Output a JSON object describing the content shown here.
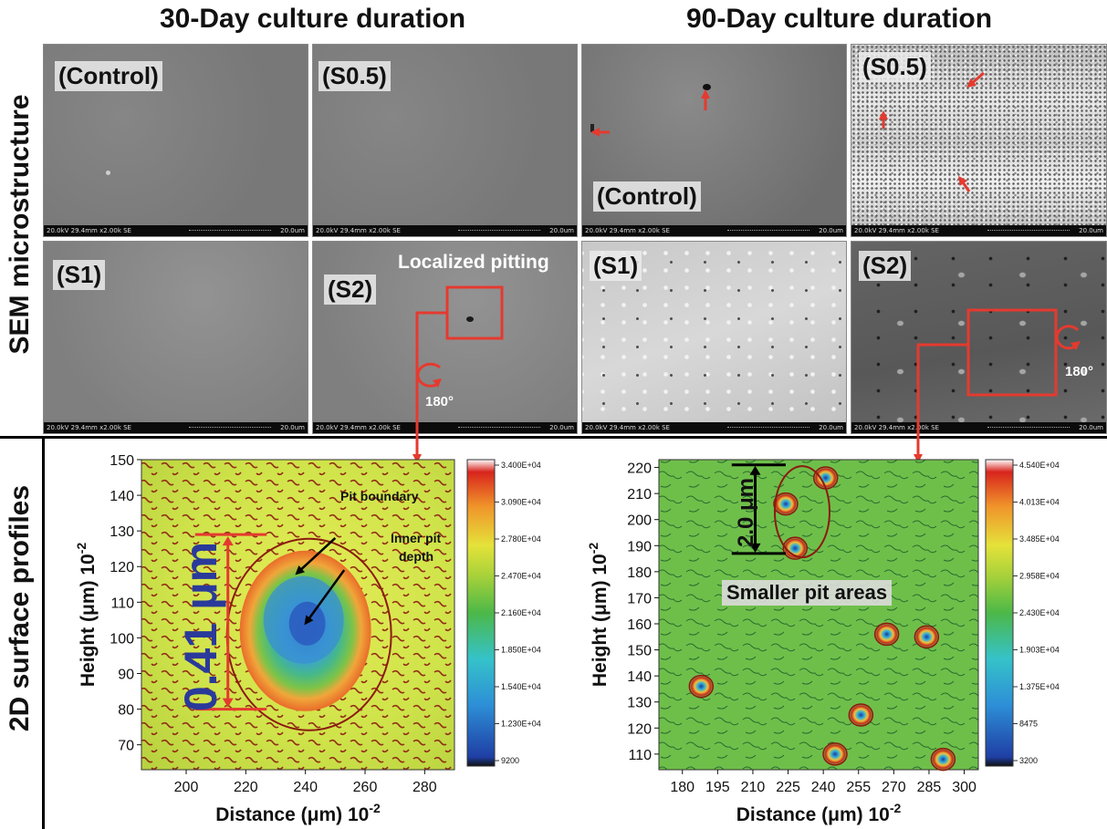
{
  "titles": {
    "left": "30-Day culture duration",
    "right": "90-Day culture duration"
  },
  "row_labels": {
    "top": "SEM microstructure",
    "bottom": "2D surface profiles"
  },
  "sem_bar": {
    "left": "20.0kV 29.4mm x2.00k SE",
    "right": "20.0um"
  },
  "sem_panels": {
    "d30_control": "(Control)",
    "d30_s05": "(S0.5)",
    "d30_s1": "(S1)",
    "d30_s2": "(S2)",
    "d90_control": "(Control)",
    "d90_s05": "(S0.5)",
    "d90_s1": "(S1)",
    "d90_s2": "(S2)"
  },
  "annotations": {
    "localized_pitting": "Localized pitting",
    "rotate_left": "180°",
    "rotate_right": "180°",
    "pit_boundary": "Pit boundary",
    "inner_pit_line1": "Inner pit",
    "inner_pit_line2": "depth",
    "depth_left": "0.41 μm",
    "depth_right": "2.0 μm",
    "smaller_pits": "Smaller pit areas"
  },
  "colors": {
    "arrow_red": "#e53a2f",
    "green_surface": "#6ebf4a",
    "yellow_surface": "#d7e64c"
  },
  "chart_data": [
    {
      "type": "heatmap",
      "xlabel": "Distance (μm) 10",
      "xlabel_sup": "-2",
      "ylabel": "Height (μm)  10",
      "ylabel_sup": "-2",
      "xlim": [
        185,
        290
      ],
      "ylim": [
        63,
        150
      ],
      "x_ticks": [
        200,
        220,
        240,
        260,
        280
      ],
      "y_ticks": [
        70,
        80,
        90,
        100,
        110,
        120,
        130,
        140,
        150
      ],
      "colorbar": [
        "3.400E+04",
        "3.090E+04",
        "2.780E+04",
        "2.470E+04",
        "2.160E+04",
        "1.850E+04",
        "1.540E+04",
        "1.230E+04",
        "9200"
      ],
      "pit_center": [
        240,
        104
      ]
    },
    {
      "type": "heatmap",
      "xlabel": "Distance (μm) 10",
      "xlabel_sup": "-2",
      "ylabel": "Height (μm)  10",
      "ylabel_sup": "-2",
      "xlim": [
        170,
        306
      ],
      "ylim": [
        104,
        223
      ],
      "x_ticks": [
        180,
        195,
        210,
        225,
        240,
        255,
        270,
        285,
        300
      ],
      "y_ticks": [
        110,
        120,
        130,
        140,
        150,
        160,
        170,
        180,
        190,
        200,
        210,
        220
      ],
      "colorbar": [
        "4.540E+04",
        "4.013E+04",
        "3.485E+04",
        "2.958E+04",
        "2.430E+04",
        "1.903E+04",
        "1.375E+04",
        "8475",
        "3200"
      ],
      "pits": [
        [
          224,
          206
        ],
        [
          228,
          189
        ],
        [
          241,
          216
        ],
        [
          188,
          136
        ],
        [
          267,
          156
        ],
        [
          284,
          155
        ],
        [
          256,
          125
        ],
        [
          245,
          110
        ],
        [
          291,
          108
        ]
      ]
    }
  ]
}
